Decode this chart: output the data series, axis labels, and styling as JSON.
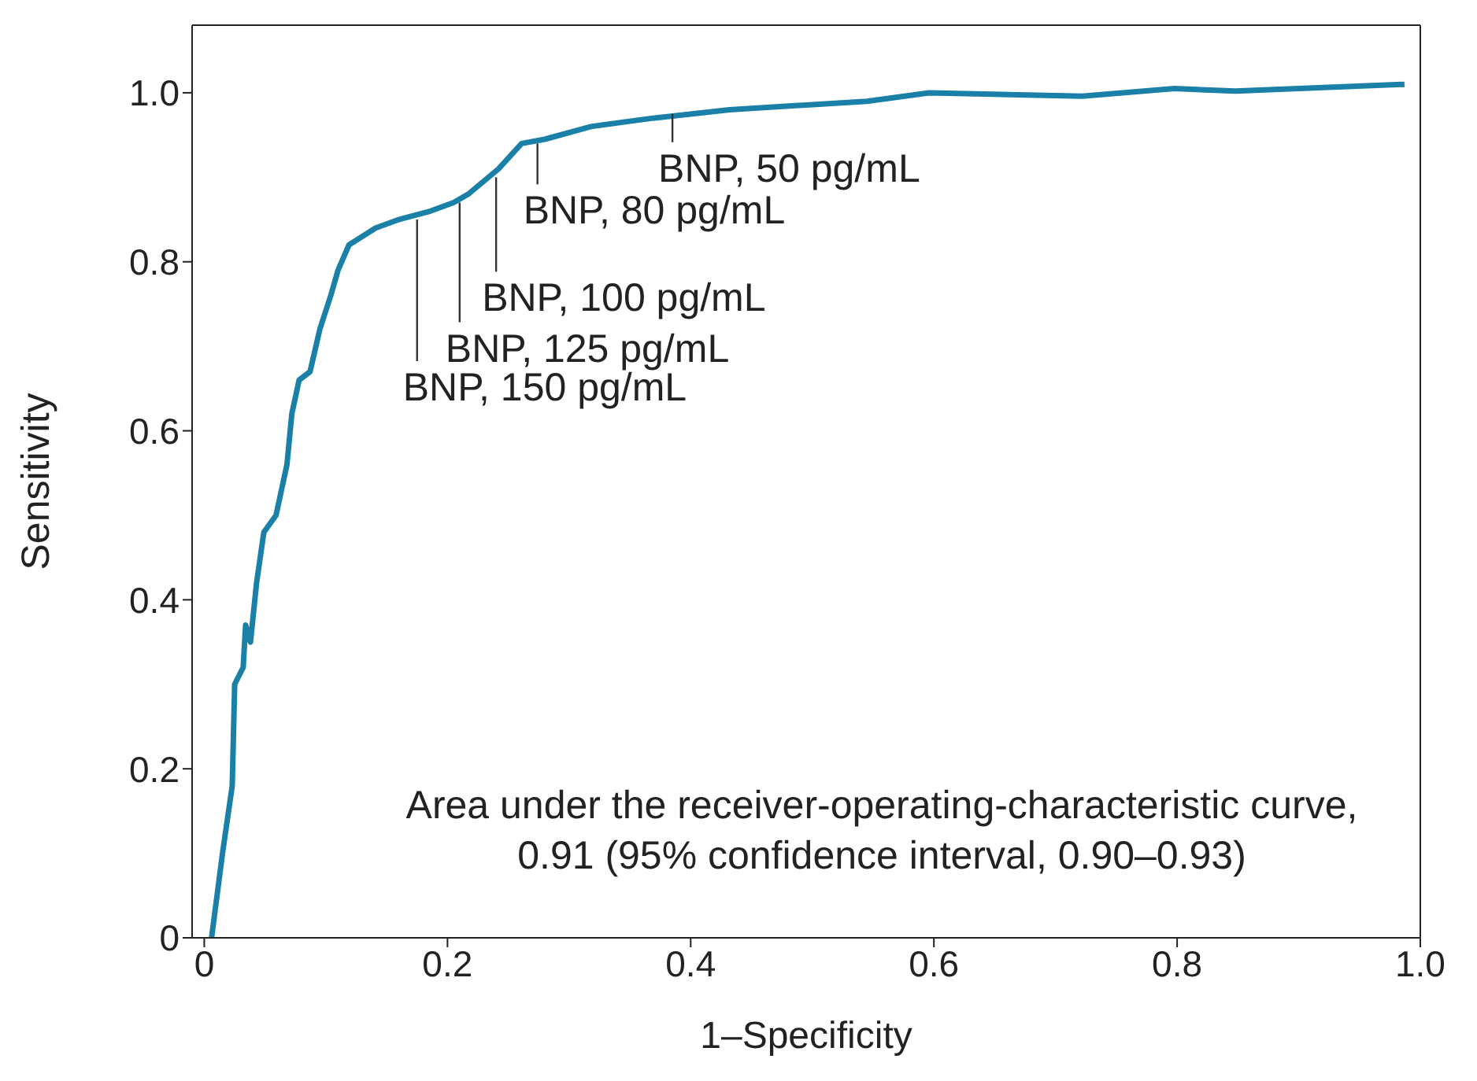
{
  "chart_data": {
    "type": "line",
    "xlabel": "1–Specificity",
    "ylabel": "Sensitivity",
    "x": [
      0.006,
      0.015,
      0.023,
      0.025,
      0.032,
      0.034,
      0.038,
      0.043,
      0.049,
      0.059,
      0.068,
      0.072,
      0.078,
      0.087,
      0.095,
      0.104,
      0.11,
      0.119,
      0.141,
      0.16,
      0.186,
      0.205,
      0.217,
      0.242,
      0.261,
      0.28,
      0.318,
      0.369,
      0.432,
      0.545,
      0.596,
      0.722,
      0.798,
      0.848,
      0.987
    ],
    "series": [
      {
        "color": "#1a80a8",
        "values": [
          0,
          0.1,
          0.18,
          0.3,
          0.32,
          0.37,
          0.35,
          0.42,
          0.48,
          0.5,
          0.56,
          0.62,
          0.66,
          0.67,
          0.72,
          0.76,
          0.79,
          0.82,
          0.84,
          0.85,
          0.86,
          0.87,
          0.88,
          0.91,
          0.94,
          0.945,
          0.96,
          0.97,
          0.98,
          0.99,
          1.0,
          0.996,
          1.005,
          1.002,
          1.01
        ]
      }
    ],
    "xlim": [
      -0.01,
      1.0
    ],
    "ylim": [
      0,
      1.08
    ],
    "xticks": [
      0,
      0.2,
      0.4,
      0.6,
      0.8,
      {
        "value": 1,
        "label": "1.0"
      }
    ],
    "yticks": [
      0,
      0.2,
      0.4,
      0.6,
      0.8,
      {
        "value": 1,
        "label": "1.0"
      }
    ],
    "grid": false,
    "legend": false,
    "marker": "none",
    "line_style": "solid",
    "annotations": [
      {
        "text": "BNP, 150 pg/mL",
        "x": 0.175,
        "y": 0.85
      },
      {
        "text": "BNP, 125 pg/mL",
        "x": 0.21,
        "y": 0.87
      },
      {
        "text": "BNP, 100 pg/mL",
        "x": 0.24,
        "y": 0.9
      },
      {
        "text": "BNP, 80 pg/mL",
        "x": 0.274,
        "y": 0.94
      },
      {
        "text": "BNP, 50 pg/mL",
        "x": 0.385,
        "y": 0.975
      },
      "Area under the receiver-operating-characteristic curve, 0.91 (95% confidence interval, 0.90–0.93)"
    ]
  }
}
